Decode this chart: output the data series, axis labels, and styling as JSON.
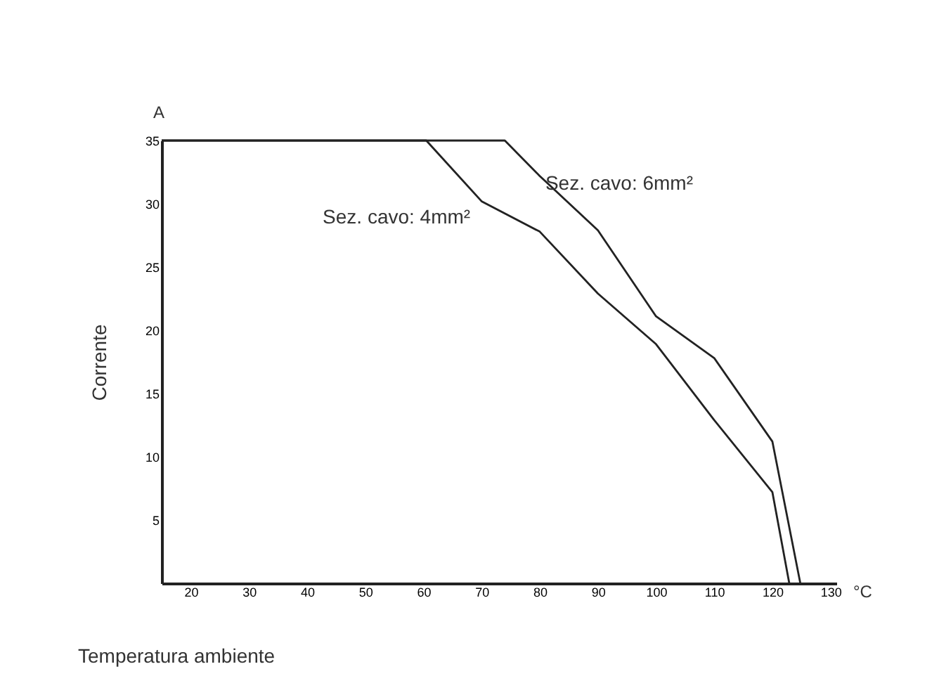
{
  "chart_data": {
    "type": "line",
    "xlabel": "Temperatura ambiente",
    "ylabel": "Corrente",
    "annotations": [
      "A",
      "°C"
    ],
    "xlim": [
      15,
      131
    ],
    "xticks": [
      20,
      30,
      40,
      50,
      60,
      70,
      80,
      90,
      100,
      110,
      120,
      130
    ],
    "ylim": [
      0,
      35
    ],
    "yticks": [
      5,
      10,
      15,
      20,
      25,
      30,
      35
    ],
    "grid": false,
    "legend": false,
    "line_style": "solid",
    "marker": "none",
    "series": [
      {
        "name": "Sez. cavo: 6mm²",
        "color": "#222222",
        "x": [
          15,
          74,
          80,
          90,
          100,
          110,
          120,
          124.8
        ],
        "values": [
          35,
          35,
          32.2,
          27.9,
          21.1,
          17.8,
          11.2,
          0
        ]
      },
      {
        "name": "Sez. cavo: 4mm²",
        "color": "#222222",
        "x": [
          15,
          60.5,
          70,
          80,
          90,
          100,
          110,
          120,
          122.9
        ],
        "values": [
          35,
          35,
          30.2,
          27.8,
          22.9,
          18.9,
          12.9,
          7.2,
          0
        ]
      }
    ]
  }
}
